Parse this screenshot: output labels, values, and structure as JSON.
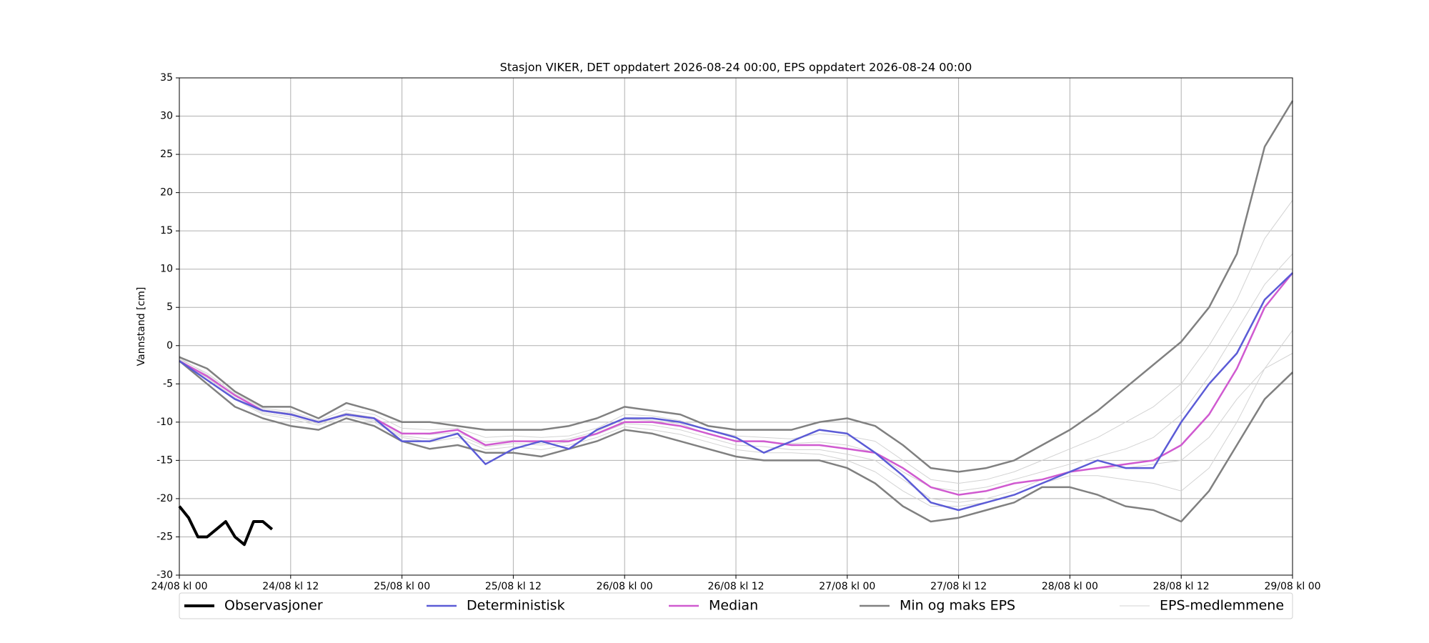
{
  "chart_data": {
    "type": "line",
    "title": "Stasjon VIKER, DET oppdatert 2026-08-24 00:00, EPS oppdatert 2026-08-24 00:00",
    "ylabel": "Vannstand [cm]",
    "x": [
      "2026-08-24T00:00",
      "2026-08-24T03:00",
      "2026-08-24T06:00",
      "2026-08-24T09:00",
      "2026-08-24T12:00",
      "2026-08-24T15:00",
      "2026-08-24T18:00",
      "2026-08-24T21:00",
      "2026-08-25T00:00",
      "2026-08-25T03:00",
      "2026-08-25T06:00",
      "2026-08-25T09:00",
      "2026-08-25T12:00",
      "2026-08-25T15:00",
      "2026-08-25T18:00",
      "2026-08-25T21:00",
      "2026-08-26T00:00",
      "2026-08-26T03:00",
      "2026-08-26T06:00",
      "2026-08-26T09:00",
      "2026-08-26T12:00",
      "2026-08-26T15:00",
      "2026-08-26T18:00",
      "2026-08-26T21:00",
      "2026-08-27T00:00",
      "2026-08-27T03:00",
      "2026-08-27T06:00",
      "2026-08-27T09:00",
      "2026-08-27T12:00",
      "2026-08-27T15:00",
      "2026-08-27T18:00",
      "2026-08-27T21:00",
      "2026-08-28T00:00",
      "2026-08-28T03:00",
      "2026-08-28T06:00",
      "2026-08-28T09:00",
      "2026-08-28T12:00",
      "2026-08-28T15:00",
      "2026-08-28T18:00",
      "2026-08-28T21:00",
      "2026-08-29T00:00"
    ],
    "xlim": [
      "2026-08-24T00:00",
      "2026-08-29T00:00"
    ],
    "xticks": [
      {
        "value": "2026-08-24T00:00",
        "label": "24/08 kl 00"
      },
      {
        "value": "2026-08-24T12:00",
        "label": "24/08 kl 12"
      },
      {
        "value": "2026-08-25T00:00",
        "label": "25/08 kl 00"
      },
      {
        "value": "2026-08-25T12:00",
        "label": "25/08 kl 12"
      },
      {
        "value": "2026-08-26T00:00",
        "label": "26/08 kl 00"
      },
      {
        "value": "2026-08-26T12:00",
        "label": "26/08 kl 12"
      },
      {
        "value": "2026-08-27T00:00",
        "label": "27/08 kl 00"
      },
      {
        "value": "2026-08-27T12:00",
        "label": "27/08 kl 12"
      },
      {
        "value": "2026-08-28T00:00",
        "label": "28/08 kl 00"
      },
      {
        "value": "2026-08-28T12:00",
        "label": "28/08 kl 12"
      },
      {
        "value": "2026-08-29T00:00",
        "label": "29/08 kl 00"
      }
    ],
    "ylim": [
      -30,
      35
    ],
    "yticks": [
      -30,
      -25,
      -20,
      -15,
      -10,
      -5,
      0,
      5,
      10,
      15,
      20,
      25,
      30,
      35
    ],
    "grid": true,
    "legend": "lower center",
    "series": [
      {
        "name": "Observasjoner",
        "color": "#000000",
        "x": [
          "2026-08-24T00:00",
          "2026-08-24T01:00",
          "2026-08-24T02:00",
          "2026-08-24T03:00",
          "2026-08-24T04:00",
          "2026-08-24T05:00",
          "2026-08-24T06:00",
          "2026-08-24T07:00",
          "2026-08-24T08:00",
          "2026-08-24T09:00",
          "2026-08-24T10:00"
        ],
        "values": [
          -21,
          -22.5,
          -25,
          -25,
          -24,
          -23,
          -25,
          -26,
          -23,
          -23,
          -24
        ]
      },
      {
        "name": "Deterministisk",
        "color": "#5b5bd6",
        "values": [
          -2,
          -4.5,
          -7,
          -8.5,
          -9,
          -10,
          -9,
          -9.5,
          -12.5,
          -12.5,
          -11.5,
          -15.5,
          -13.5,
          -12.5,
          -13.5,
          -11,
          -9.5,
          -9.5,
          -10,
          -11,
          -12,
          -14,
          -12.5,
          -11,
          -11.5,
          -14,
          -17,
          -20.5,
          -21.5,
          -20.5,
          -19.5,
          -18,
          -16.5,
          -15,
          -16,
          -16,
          -10,
          -5,
          -1,
          6,
          9.5
        ]
      },
      {
        "name": "Median",
        "color": "#d05ad0",
        "values": [
          -2,
          -4,
          -6.5,
          -8.5,
          -9,
          -10,
          -9,
          -9.5,
          -11.5,
          -11.5,
          -11,
          -13,
          -12.5,
          -12.5,
          -12.5,
          -11.5,
          -10,
          -10,
          -10.5,
          -11.5,
          -12.5,
          -12.5,
          -13,
          -13,
          -13.5,
          -14,
          -16,
          -18.5,
          -19.5,
          -19,
          -18,
          -17.5,
          -16.5,
          -16,
          -15.5,
          -15,
          -13,
          -9,
          -3,
          5,
          9.5
        ]
      },
      {
        "name": "Min og maks EPS",
        "color": "#808080",
        "values": [
          [
            -2,
            -5,
            -8,
            -9.5,
            -10.5,
            -11,
            -9.5,
            -10.5,
            -12.5,
            -13.5,
            -13,
            -14,
            -14,
            -14.5,
            -13.5,
            -12.5,
            -11,
            -11.5,
            -12.5,
            -13.5,
            -14.5,
            -15,
            -15,
            -15,
            -16,
            -18,
            -21,
            -23,
            -22.5,
            -21.5,
            -20.5,
            -18.5,
            -18.5,
            -19.5,
            -21,
            -21.5,
            -23,
            -19,
            -13,
            -7,
            -3.5
          ],
          [
            -1.5,
            -3,
            -6,
            -8,
            -8,
            -9.5,
            -7.5,
            -8.5,
            -10,
            -10,
            -10.5,
            -11,
            -11,
            -11,
            -10.5,
            -9.5,
            -8,
            -8.5,
            -9,
            -10.5,
            -11,
            -11,
            -11,
            -10,
            -9.5,
            -10.5,
            -13,
            -16,
            -16.5,
            -16,
            -15,
            -13,
            -11,
            -8.5,
            -5.5,
            -2.5,
            0.5,
            5,
            12,
            26,
            32
          ]
        ]
      },
      {
        "name": "EPS-medlemmene",
        "color": "#d3d3d3",
        "values": [
          [
            -1.8,
            -3.6,
            -6.3,
            -8.2,
            -8.6,
            -9.8,
            -8.4,
            -9,
            -10.8,
            -11,
            -10.8,
            -12,
            -11.8,
            -12,
            -11.8,
            -10.8,
            -9,
            -9.2,
            -9.8,
            -11,
            -11.8,
            -12,
            -12.2,
            -11.5,
            -11.8,
            -12.5,
            -15,
            -17.5,
            -18,
            -17.5,
            -16.5,
            -15,
            -13.5,
            -12,
            -10,
            -8,
            -5,
            0,
            6,
            14,
            19
          ],
          [
            -2,
            -4.4,
            -7,
            -9,
            -9.6,
            -10.4,
            -9.2,
            -10,
            -12,
            -12.6,
            -12,
            -13.6,
            -13.2,
            -13.6,
            -13,
            -12,
            -10.6,
            -11,
            -11.6,
            -12.6,
            -13.6,
            -14,
            -14,
            -14.2,
            -15,
            -16.5,
            -19,
            -21,
            -21,
            -20.5,
            -19.5,
            -18,
            -17,
            -17,
            -17.5,
            -18,
            -19,
            -16,
            -10,
            -3,
            2
          ],
          [
            -1.6,
            -3.8,
            -6.5,
            -8.4,
            -8.8,
            -10,
            -8.8,
            -9.4,
            -11.4,
            -11.6,
            -11.4,
            -12.6,
            -12.4,
            -12.8,
            -12.2,
            -11.2,
            -9.6,
            -9.8,
            -10.2,
            -11.6,
            -12.4,
            -12.6,
            -12.8,
            -12.6,
            -13,
            -14,
            -16.5,
            -18.5,
            -19,
            -18.5,
            -17.5,
            -16.5,
            -15.5,
            -14.5,
            -13.5,
            -12,
            -9,
            -4,
            2,
            8,
            12
          ],
          [
            -2.1,
            -4.2,
            -6.8,
            -8.8,
            -9.3,
            -10.2,
            -9,
            -9.8,
            -11.8,
            -12.2,
            -11.6,
            -13.2,
            -12.8,
            -13,
            -12.6,
            -11.6,
            -10.2,
            -10.4,
            -11,
            -12,
            -13,
            -13.2,
            -13.6,
            -13.6,
            -14.2,
            -15,
            -17.5,
            -20,
            -20.5,
            -20,
            -19,
            -17.5,
            -16.5,
            -16,
            -16,
            -15.5,
            -15,
            -12,
            -7,
            -3,
            -1
          ]
        ]
      }
    ]
  }
}
